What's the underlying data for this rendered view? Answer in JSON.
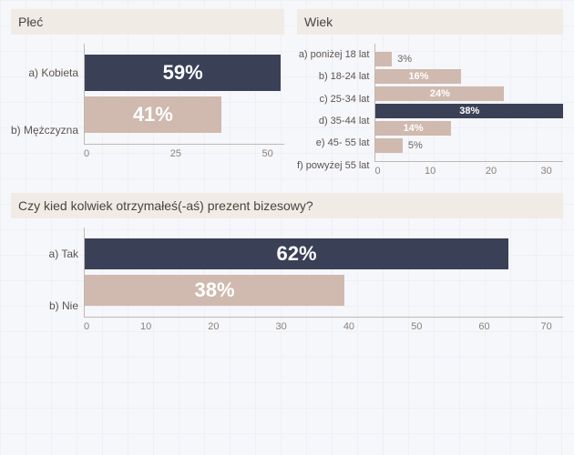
{
  "colors": {
    "dark": "#3a4056",
    "light": "#d0b9ae",
    "title_bg": "#f1ebe6"
  },
  "gender": {
    "title": "Płeć",
    "type": "horizontal-bar",
    "xlim": [
      0,
      60
    ],
    "xticks": [
      0,
      25,
      50
    ],
    "label_fontsize": 12,
    "value_fontsize": 22,
    "items": [
      {
        "label": "a) Kobieta",
        "value": 59,
        "text": "59%",
        "color": "#3a4056"
      },
      {
        "label": "b) Mężczyzna",
        "value": 41,
        "text": "41%",
        "color": "#d0b9ae"
      }
    ]
  },
  "age": {
    "title": "Wiek",
    "type": "horizontal-bar",
    "xlim": [
      0,
      35
    ],
    "xticks": [
      0,
      10,
      20,
      30
    ],
    "label_fontsize": 11,
    "value_fontsize": 11,
    "items": [
      {
        "label": "a) poniżej 18 lat",
        "value": 3,
        "text": "3%",
        "color": "#d0b9ae",
        "out": true
      },
      {
        "label": "b) 18-24 lat",
        "value": 16,
        "text": "16%",
        "color": "#d0b9ae"
      },
      {
        "label": "c) 25-34 lat",
        "value": 24,
        "text": "24%",
        "color": "#d0b9ae"
      },
      {
        "label": "d) 35-44 lat",
        "value": 38,
        "text": "38%",
        "color": "#3a4056"
      },
      {
        "label": "e) 45- 55 lat",
        "value": 14,
        "text": "14%",
        "color": "#d0b9ae"
      },
      {
        "label": "f) powyżej 55 lat",
        "value": 5,
        "text": "5%",
        "color": "#d0b9ae",
        "out": true
      }
    ]
  },
  "gift": {
    "title": "Czy kied kolwiek otrzymałeś(-aś) prezent bizesowy?",
    "type": "horizontal-bar",
    "xlim": [
      0,
      70
    ],
    "xticks": [
      0,
      10,
      20,
      30,
      40,
      50,
      60,
      70
    ],
    "label_fontsize": 12,
    "value_fontsize": 22,
    "items": [
      {
        "label": "a) Tak",
        "value": 62,
        "text": "62%",
        "color": "#3a4056"
      },
      {
        "label": "b) Nie",
        "value": 38,
        "text": "38%",
        "color": "#d0b9ae"
      }
    ]
  }
}
